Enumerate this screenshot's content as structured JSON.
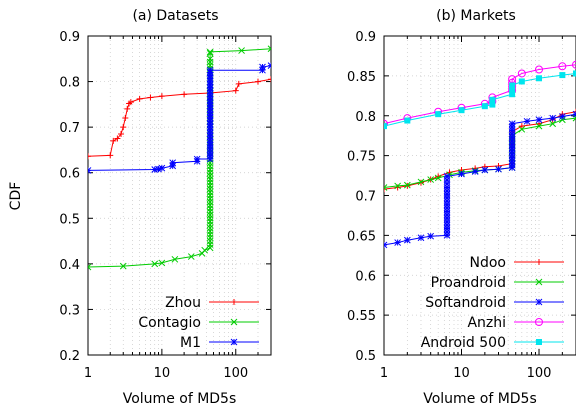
{
  "chart_data": [
    {
      "type": "line",
      "title": "(a) Datasets",
      "xlabel": "Volume of MD5s",
      "ylabel": "CDF",
      "xscale": "log",
      "xlim": [
        1,
        300
      ],
      "ylim": [
        0.2,
        0.9
      ],
      "xticks": [
        1,
        10,
        100
      ],
      "xtick_labels": [
        "1",
        "10",
        "100"
      ],
      "yticks": [
        0.2,
        0.3,
        0.4,
        0.5,
        0.6,
        0.7,
        0.8,
        0.9
      ],
      "ytick_labels": [
        "0.2",
        "0.3",
        "0.4",
        "0.5",
        "0.6",
        "0.7",
        "0.8",
        "0.9"
      ],
      "grid": true,
      "legend": "bottom-right",
      "series": [
        {
          "name": "Zhou",
          "color": "#ff0000",
          "marker": "plus",
          "x": [
            1,
            2,
            2.2,
            2.5,
            2.8,
            3,
            3.2,
            3.4,
            3.6,
            3.8,
            5,
            7,
            10,
            20,
            45,
            100,
            110,
            200,
            300
          ],
          "y": [
            0.636,
            0.638,
            0.67,
            0.675,
            0.685,
            0.7,
            0.72,
            0.74,
            0.752,
            0.755,
            0.762,
            0.765,
            0.768,
            0.772,
            0.775,
            0.78,
            0.795,
            0.8,
            0.805
          ]
        },
        {
          "name": "Contagio",
          "color": "#00cc00",
          "marker": "x",
          "x": [
            1,
            3,
            8,
            10,
            15,
            25,
            35,
            38,
            45,
            45,
            45,
            45,
            45,
            45,
            45,
            45,
            45,
            45,
            45,
            45,
            120,
            300
          ],
          "y": [
            0.393,
            0.395,
            0.4,
            0.402,
            0.41,
            0.416,
            0.423,
            0.43,
            0.435,
            0.45,
            0.5,
            0.55,
            0.6,
            0.65,
            0.7,
            0.75,
            0.8,
            0.85,
            0.862,
            0.865,
            0.868,
            0.872
          ]
        },
        {
          "name": "M1",
          "color": "#0000ff",
          "marker": "star",
          "x": [
            1,
            8,
            9,
            10,
            14,
            14,
            30,
            30,
            45,
            45,
            45,
            45,
            45,
            45,
            45,
            45,
            230,
            230,
            300
          ],
          "y": [
            0.605,
            0.607,
            0.608,
            0.61,
            0.615,
            0.622,
            0.625,
            0.63,
            0.63,
            0.66,
            0.7,
            0.74,
            0.78,
            0.82,
            0.82,
            0.825,
            0.825,
            0.832,
            0.835
          ]
        }
      ]
    },
    {
      "type": "line",
      "title": "(b) Markets",
      "xlabel": "Volume of MD5s",
      "ylabel": "",
      "xscale": "log",
      "xlim": [
        1,
        300
      ],
      "ylim": [
        0.5,
        0.9
      ],
      "xticks": [
        1,
        10,
        100
      ],
      "xtick_labels": [
        "1",
        "10",
        "100"
      ],
      "yticks": [
        0.5,
        0.55,
        0.6,
        0.65,
        0.7,
        0.75,
        0.8,
        0.85,
        0.9
      ],
      "ytick_labels": [
        "0.5",
        "0.55",
        "0.6",
        "0.65",
        "0.7",
        "0.75",
        "0.8",
        "0.85",
        "0.9"
      ],
      "grid": true,
      "legend": "bottom-right",
      "series": [
        {
          "name": "Ndoo",
          "color": "#ff0000",
          "marker": "plus",
          "x": [
            1,
            1.5,
            2,
            3,
            4,
            5,
            7,
            10,
            15,
            20,
            30,
            45,
            45,
            60,
            100,
            150,
            200,
            300
          ],
          "y": [
            0.708,
            0.71,
            0.712,
            0.716,
            0.72,
            0.724,
            0.729,
            0.732,
            0.734,
            0.736,
            0.737,
            0.74,
            0.78,
            0.787,
            0.79,
            0.795,
            0.802,
            0.805
          ]
        },
        {
          "name": "Proandroid",
          "color": "#00cc00",
          "marker": "x",
          "x": [
            1,
            1.5,
            2,
            3,
            4,
            5,
            7,
            10,
            15,
            20,
            30,
            45,
            45,
            60,
            100,
            150,
            200,
            300
          ],
          "y": [
            0.71,
            0.712,
            0.713,
            0.717,
            0.72,
            0.722,
            0.726,
            0.729,
            0.731,
            0.732,
            0.733,
            0.735,
            0.775,
            0.783,
            0.787,
            0.79,
            0.795,
            0.797
          ]
        },
        {
          "name": "Softandroid",
          "color": "#0000ff",
          "marker": "star",
          "x": [
            1,
            1.5,
            2,
            3,
            4,
            6.5,
            6.5,
            6.5,
            6.5,
            10,
            15,
            20,
            30,
            45,
            45,
            45,
            70,
            100,
            150,
            200,
            300
          ],
          "y": [
            0.638,
            0.641,
            0.644,
            0.647,
            0.649,
            0.65,
            0.68,
            0.71,
            0.724,
            0.727,
            0.73,
            0.732,
            0.733,
            0.735,
            0.76,
            0.79,
            0.793,
            0.795,
            0.797,
            0.799,
            0.802
          ]
        },
        {
          "name": "Anzhi",
          "color": "#ff00ff",
          "marker": "circle",
          "x": [
            1,
            2,
            5,
            10,
            20,
            25,
            25,
            45,
            45,
            60,
            100,
            200,
            300
          ],
          "y": [
            0.79,
            0.797,
            0.805,
            0.81,
            0.815,
            0.818,
            0.823,
            0.832,
            0.846,
            0.853,
            0.858,
            0.862,
            0.864
          ]
        },
        {
          "name": "Android 500",
          "color": "#00e5ee",
          "marker": "square",
          "x": [
            1,
            2,
            5,
            10,
            20,
            25,
            25,
            45,
            45,
            60,
            100,
            200,
            300
          ],
          "y": [
            0.787,
            0.794,
            0.802,
            0.807,
            0.812,
            0.814,
            0.82,
            0.827,
            0.838,
            0.843,
            0.847,
            0.851,
            0.853
          ]
        }
      ]
    }
  ]
}
